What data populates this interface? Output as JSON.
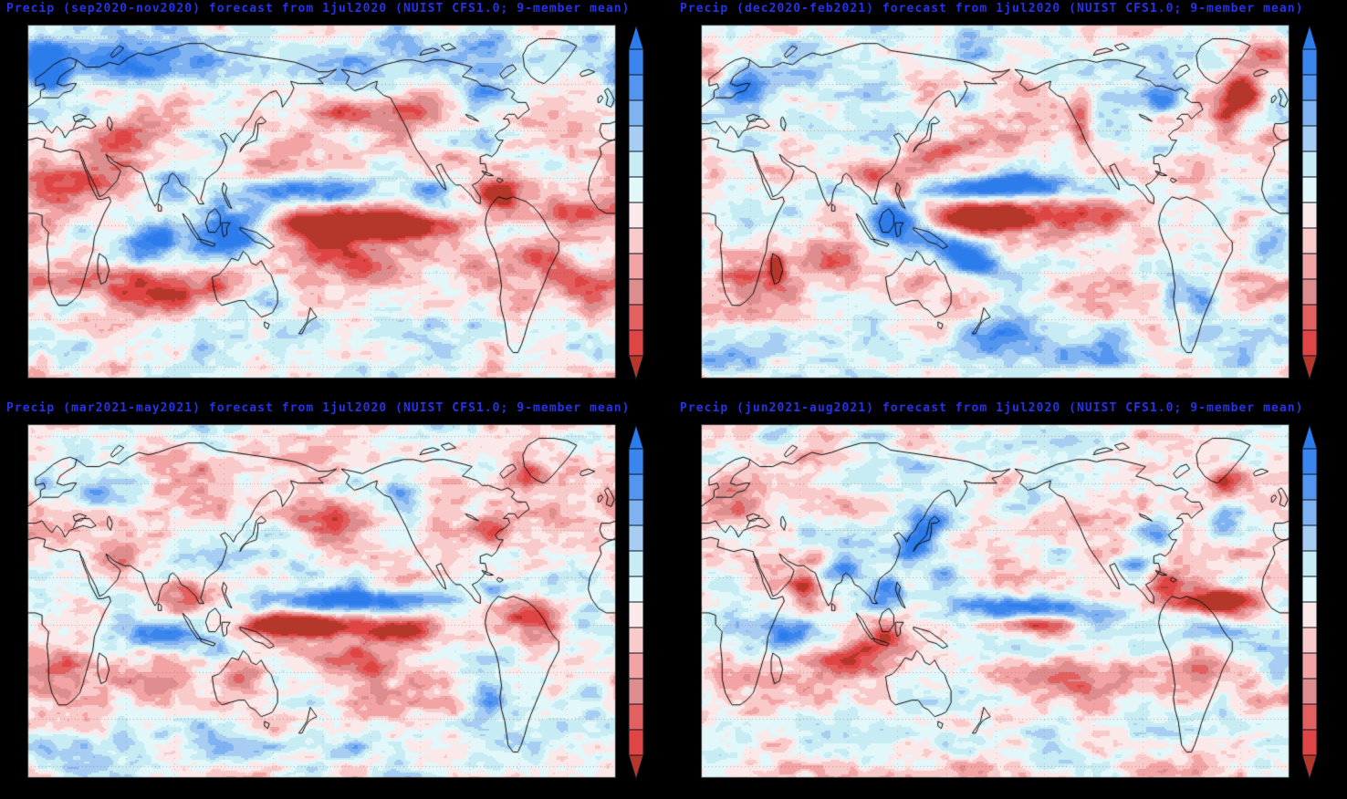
{
  "figure": {
    "variable": "Precip",
    "forecast_init": "1jul2020",
    "model": "NUIST CFS1.0",
    "ensemble": "9-member mean",
    "background_color": "#000000",
    "title_color": "#2433e8",
    "coastline_color": "#0d0d0d"
  },
  "chart_data": {
    "type": "heatmap",
    "subtype": "global-precipitation-anomaly-forecast-maps",
    "layout": "2x2 panels, each with vertical colorbar at right",
    "projection": {
      "lon_min": 0,
      "lon_max": 360,
      "lat_min": -65,
      "lat_max": 85
    },
    "grid": {
      "lat_interval_deg": 20,
      "lon_interval_deg": 30,
      "style": "dotted",
      "color": "rgba(150,70,70,0.45)"
    },
    "colorbar": {
      "orientation": "vertical",
      "arrow_top": "#2c7ceb",
      "arrow_bottom": "#b5372a",
      "segments_top_to_bottom": [
        "#3a85ee",
        "#5496ef",
        "#7fb2f1",
        "#a8cdf2",
        "#c7ecf3",
        "#e2f7f9",
        "#fbe9e9",
        "#f9caca",
        "#f2a3a3",
        "#dd8d8d",
        "#e26060",
        "#e04545"
      ],
      "labels": []
    },
    "palette_dry_to_wet": [
      "#b5372a",
      "#e04545",
      "#e26060",
      "#dd8d8d",
      "#f2a3a3",
      "#f9caca",
      "#fbe9e9",
      "#e2f7f9",
      "#c7ecf3",
      "#a8cdf2",
      "#7fb2f1",
      "#5496ef",
      "#3a85ee",
      "#2c7ceb"
    ],
    "value_range": [
      -0.91,
      0.91
    ],
    "bin_width": 0.13,
    "noise": {
      "amplitude": 0.55,
      "octaves": [
        [
          28,
          10,
          0.5
        ],
        [
          12,
          4.5,
          0.3
        ],
        [
          5.5,
          2.3,
          0.2
        ]
      ]
    },
    "feature_format": "[lon_deg_E, lat_deg_N, radius_lon_deg, radius_lat_deg, amplitude(+wet/blue,-dry/red), tilt_optional]",
    "panels": [
      {
        "title": "Precip (sep2020-nov2020) forecast from 1jul2020 (NUIST CFS1.0; 9-member mean)",
        "season": "sep2020-nov2020",
        "seed": 3,
        "zonal": [
          [
            70,
            12,
            0.3
          ],
          [
            -25,
            12,
            -0.18
          ],
          [
            30,
            10,
            -0.12
          ],
          [
            -52,
            7,
            0.1
          ]
        ],
        "features": [
          [
            210,
            0,
            50,
            6,
            -1.5
          ],
          [
            195,
            -13,
            30,
            7,
            -0.9,
            -0.25
          ],
          [
            288,
            12,
            12,
            6,
            -1.1
          ],
          [
            125,
            -4,
            22,
            10,
            1.0
          ],
          [
            172,
            14,
            38,
            6,
            0.75
          ],
          [
            78,
            -7,
            18,
            8,
            0.6
          ],
          [
            88,
            16,
            12,
            7,
            0.6
          ],
          [
            15,
            62,
            11,
            6,
            0.95
          ],
          [
            8,
            72,
            12,
            6,
            0.6
          ],
          [
            80,
            67,
            45,
            9,
            0.45
          ],
          [
            25,
            18,
            32,
            10,
            -0.5
          ],
          [
            48,
            33,
            18,
            8,
            -0.45
          ],
          [
            70,
            45,
            20,
            8,
            -0.45
          ],
          [
            80,
            -28,
            30,
            8,
            -0.55
          ],
          [
            318,
            -12,
            16,
            9,
            -0.55
          ],
          [
            335,
            5,
            18,
            6,
            -0.55
          ],
          [
            237,
            52,
            16,
            8,
            -0.55
          ],
          [
            195,
            48,
            25,
            8,
            -0.5
          ],
          [
            282,
            35,
            10,
            6,
            0.55
          ],
          [
            278,
            55,
            14,
            7,
            0.5
          ],
          [
            150,
            -32,
            14,
            8,
            0.5
          ],
          [
            115,
            -27,
            10,
            7,
            -0.45
          ],
          [
            300,
            -36,
            12,
            8,
            -0.4
          ],
          [
            10,
            8,
            18,
            8,
            -0.45
          ],
          [
            345,
            -30,
            12,
            8,
            -0.35
          ],
          [
            248,
            14,
            10,
            6,
            0.45
          ]
        ]
      },
      {
        "title": "Precip (dec2020-feb2021) forecast from 1jul2020 (NUIST CFS1.0; 9-member mean)",
        "season": "dec2020-feb2021",
        "seed": 7,
        "zonal": [
          [
            70,
            12,
            0.18
          ],
          [
            -25,
            12,
            -0.15
          ],
          [
            -55,
            8,
            0.22
          ]
        ],
        "features": [
          [
            175,
            3,
            28,
            6,
            -1.6
          ],
          [
            232,
            6,
            45,
            8,
            -0.55
          ],
          [
            182,
            16,
            40,
            5,
            1.15
          ],
          [
            118,
            0,
            15,
            10,
            0.95
          ],
          [
            162,
            -13,
            25,
            8,
            0.85,
            -0.3
          ],
          [
            46,
            -18,
            6,
            6,
            -0.9
          ],
          [
            75,
            -15,
            25,
            7,
            -0.5
          ],
          [
            133,
            -25,
            12,
            7,
            -0.4
          ],
          [
            331,
            57,
            12,
            9,
            -1.45
          ],
          [
            345,
            72,
            14,
            8,
            -0.8
          ],
          [
            322,
            45,
            9,
            8,
            -0.7
          ],
          [
            160,
            33,
            25,
            5,
            -0.75,
            0.15
          ],
          [
            233,
            45,
            7,
            12,
            -0.65
          ],
          [
            285,
            55,
            15,
            8,
            0.55
          ],
          [
            122,
            14,
            8,
            5,
            -0.75
          ],
          [
            105,
            20,
            10,
            6,
            -0.5
          ],
          [
            350,
            -8,
            12,
            8,
            0.5
          ],
          [
            287,
            -32,
            6,
            9,
            0.5
          ],
          [
            8,
            63,
            8,
            5,
            -0.5
          ],
          [
            28,
            57,
            12,
            6,
            0.5
          ],
          [
            352,
            38,
            8,
            5,
            -0.55
          ],
          [
            185,
            -45,
            20,
            8,
            0.45
          ],
          [
            25,
            -25,
            14,
            8,
            -0.6
          ],
          [
            305,
            -30,
            10,
            8,
            0.45
          ],
          [
            195,
            60,
            15,
            8,
            -0.45
          ]
        ]
      },
      {
        "title": "Precip (mar2021-may2021) forecast from 1jul2020 (NUIST CFS1.0; 9-member mean)",
        "season": "mar2021-may2021",
        "seed": 13,
        "zonal": [
          [
            70,
            12,
            -0.08
          ],
          [
            -28,
            12,
            -0.15
          ],
          [
            -52,
            9,
            0.12
          ],
          [
            45,
            10,
            -0.1
          ]
        ],
        "features": [
          [
            165,
            0,
            28,
            5,
            -1.35
          ],
          [
            228,
            -2,
            45,
            6,
            -0.75
          ],
          [
            200,
            10,
            45,
            5,
            0.95
          ],
          [
            207,
            -16,
            28,
            7,
            -0.65,
            -0.2
          ],
          [
            85,
            -5,
            20,
            6,
            0.65
          ],
          [
            100,
            13,
            14,
            7,
            -0.55
          ],
          [
            115,
            -12,
            14,
            5,
            0.5
          ],
          [
            130,
            -22,
            12,
            7,
            -0.45
          ],
          [
            280,
            -30,
            14,
            10,
            0.7
          ],
          [
            310,
            4,
            20,
            7,
            -0.6
          ],
          [
            285,
            15,
            10,
            5,
            0.55
          ],
          [
            345,
            -25,
            10,
            8,
            0.5
          ],
          [
            25,
            -20,
            14,
            8,
            -0.45
          ],
          [
            185,
            40,
            20,
            9,
            -0.65
          ],
          [
            230,
            50,
            12,
            7,
            0.45
          ],
          [
            300,
            63,
            16,
            7,
            -0.45
          ],
          [
            285,
            42,
            14,
            6,
            -0.45
          ],
          [
            40,
            55,
            14,
            7,
            0.4
          ],
          [
            5,
            48,
            10,
            6,
            -0.4
          ],
          [
            60,
            30,
            20,
            8,
            -0.4
          ],
          [
            340,
            0,
            12,
            6,
            0.4
          ],
          [
            10,
            58,
            10,
            6,
            0.4
          ]
        ]
      },
      {
        "title": "Precip (jun2021-aug2021) forecast from 1jul2020 (NUIST CFS1.0; 9-member mean)",
        "season": "jun2021-aug2021",
        "seed": 21,
        "zonal": [
          [
            68,
            12,
            -0.08
          ],
          [
            -22,
            12,
            -0.15
          ],
          [
            -45,
            10,
            0.18
          ],
          [
            -62,
            4,
            -0.15
          ]
        ],
        "features": [
          [
            132,
            37,
            10,
            8,
            1.0
          ],
          [
            145,
            42,
            10,
            6,
            0.6
          ],
          [
            115,
            15,
            10,
            7,
            0.6
          ],
          [
            150,
            20,
            14,
            6,
            0.5
          ],
          [
            215,
            7,
            42,
            5,
            0.95
          ],
          [
            200,
            0,
            25,
            3,
            -0.75
          ],
          [
            315,
            10,
            28,
            5,
            -1.25
          ],
          [
            285,
            18,
            12,
            6,
            -0.7
          ],
          [
            325,
            -3,
            22,
            4,
            0.7
          ],
          [
            64,
            15,
            10,
            6,
            -0.85
          ],
          [
            52,
            -5,
            12,
            7,
            0.7
          ],
          [
            90,
            -15,
            25,
            7,
            -0.6
          ],
          [
            88,
            24,
            10,
            5,
            0.5
          ],
          [
            72,
            28,
            10,
            5,
            -0.4
          ],
          [
            113,
            -5,
            12,
            5,
            -0.55
          ],
          [
            265,
            25,
            10,
            6,
            0.5
          ],
          [
            245,
            40,
            14,
            7,
            -0.45
          ],
          [
            280,
            40,
            10,
            6,
            0.4
          ],
          [
            305,
            -15,
            14,
            8,
            -0.5
          ],
          [
            322,
            -30,
            10,
            7,
            0.4
          ],
          [
            80,
            50,
            20,
            8,
            -0.4
          ],
          [
            20,
            48,
            14,
            7,
            -0.4
          ],
          [
            322,
            45,
            12,
            7,
            0.5
          ],
          [
            320,
            60,
            10,
            6,
            -0.55
          ],
          [
            132,
            62,
            14,
            7,
            0.4
          ],
          [
            230,
            -20,
            25,
            8,
            -0.4
          ],
          [
            350,
            -20,
            12,
            8,
            0.45
          ],
          [
            200,
            55,
            12,
            7,
            0.4
          ]
        ]
      }
    ]
  }
}
